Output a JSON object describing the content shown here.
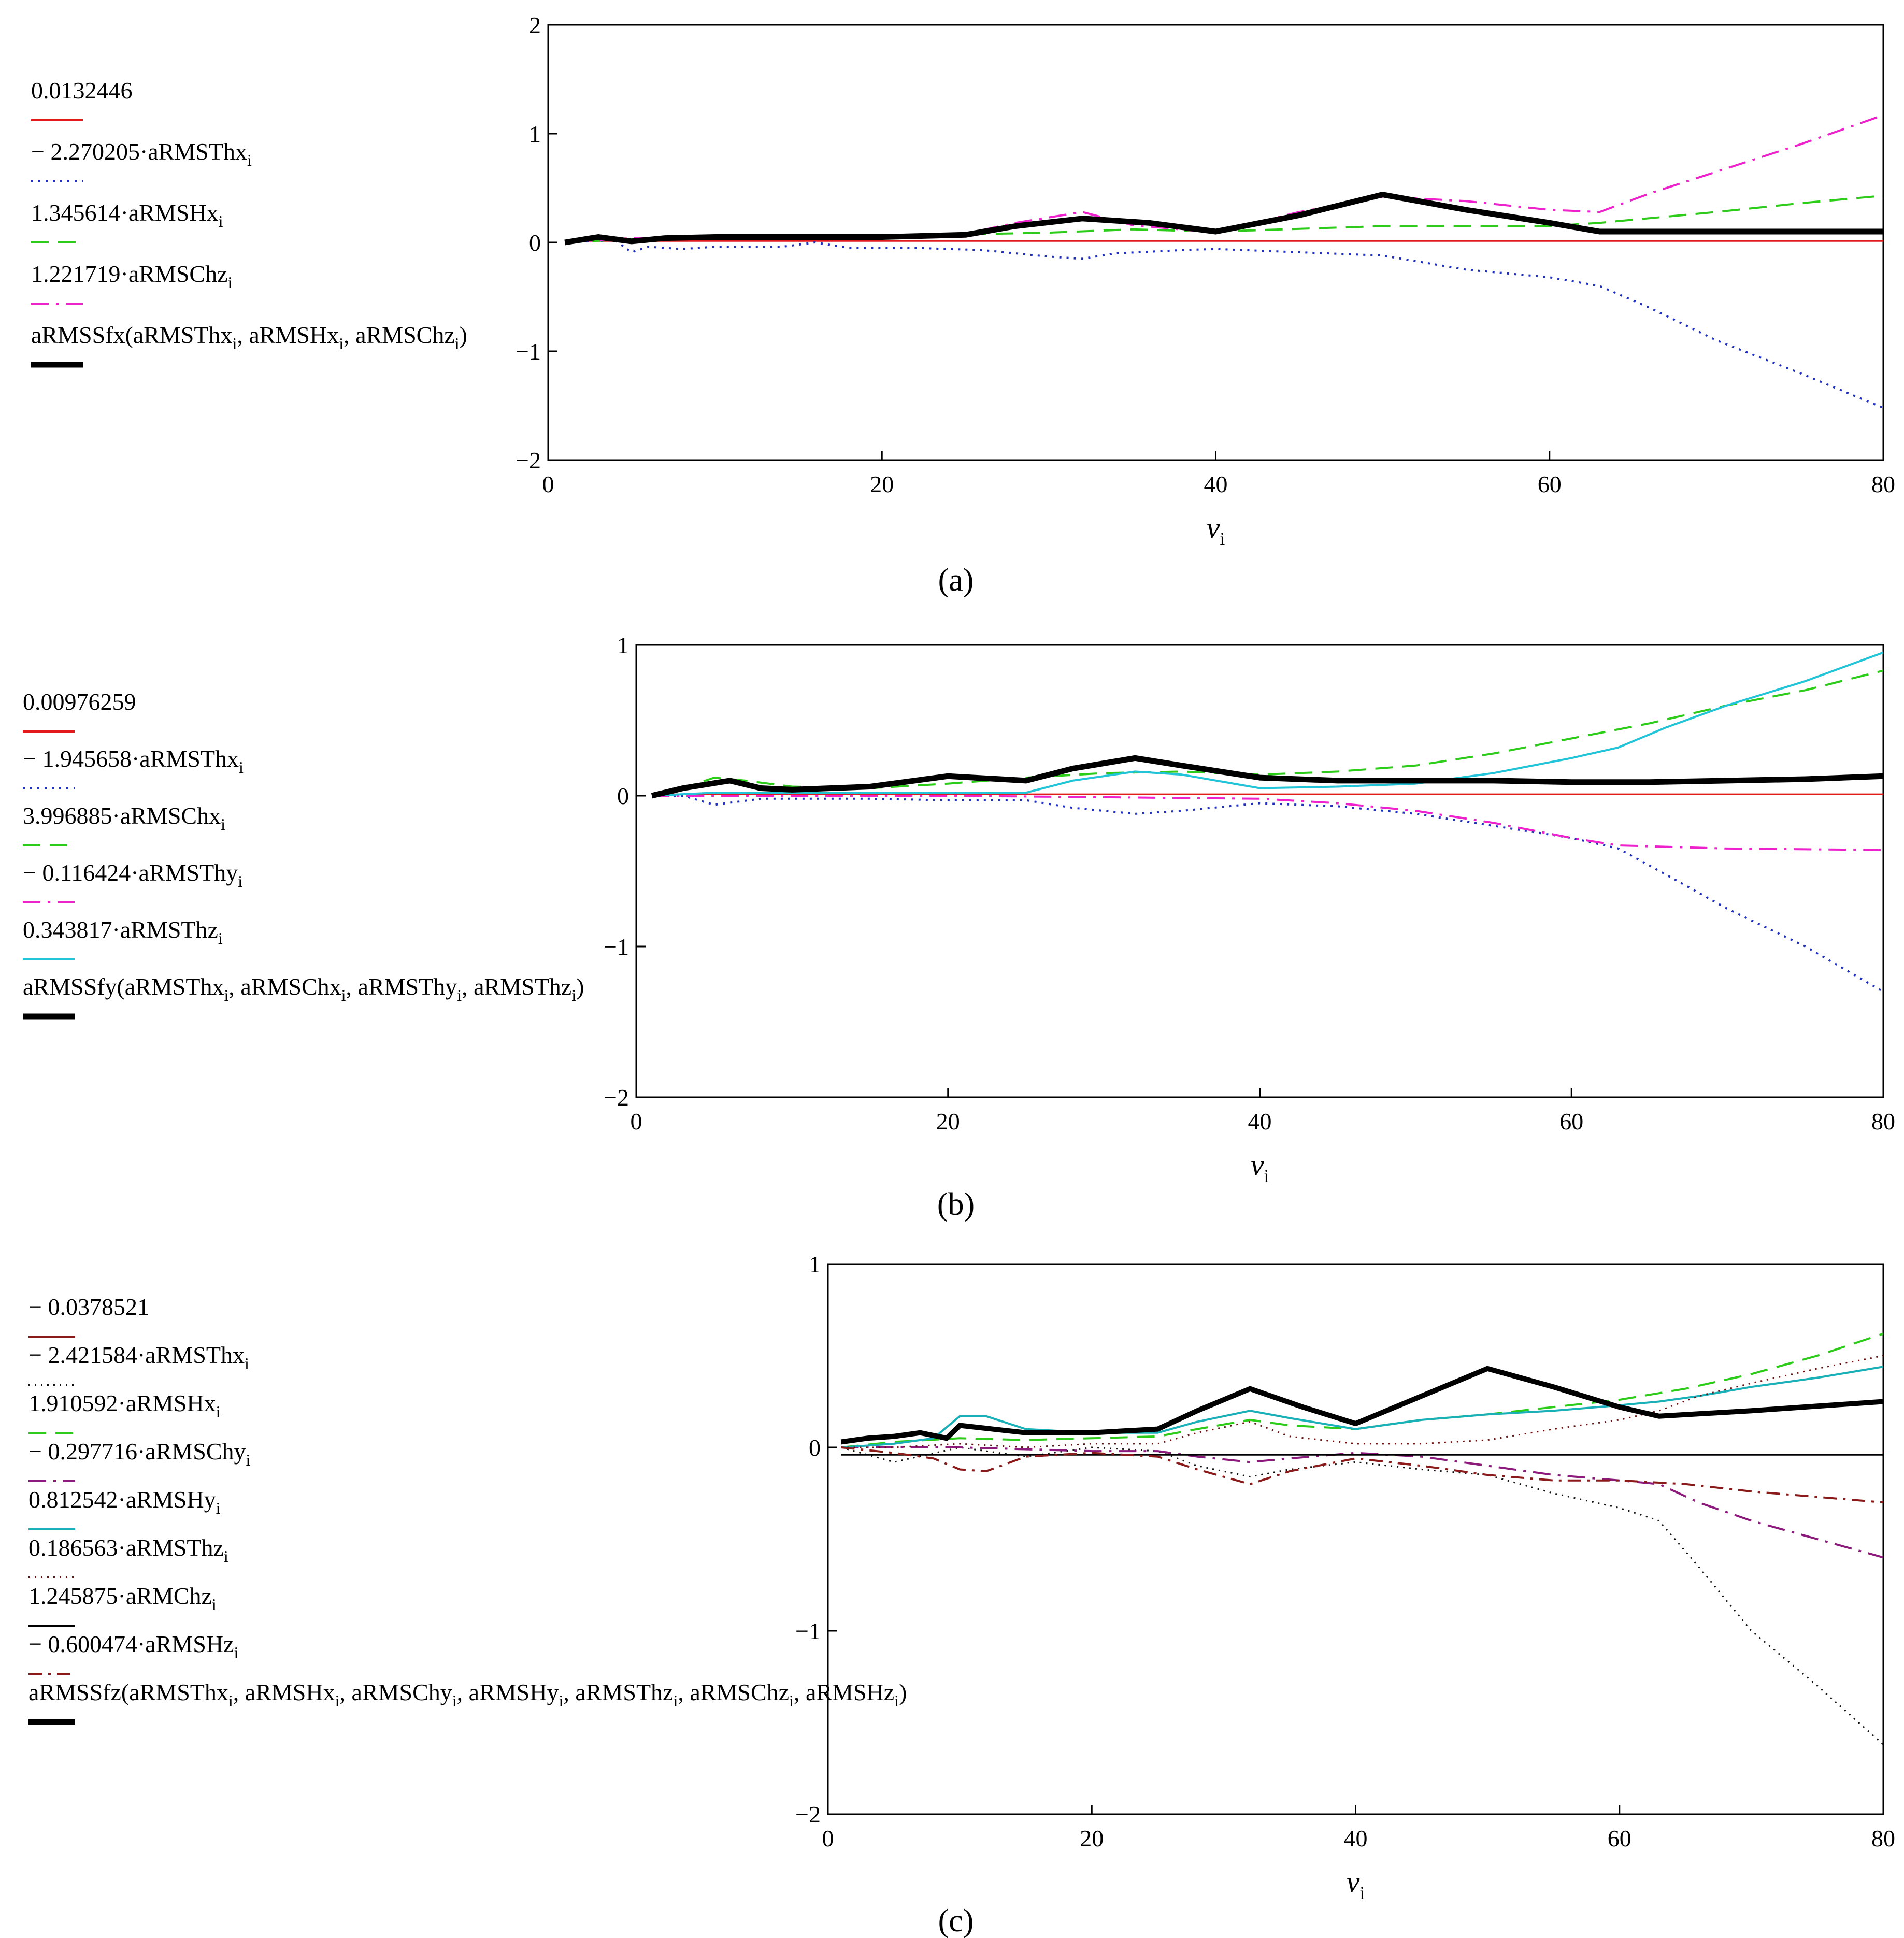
{
  "chart_data": [
    {
      "type": "line",
      "caption": "(a)",
      "xlabel": "ν",
      "xlabel_sub": "i",
      "xlim": [
        0,
        80
      ],
      "ylim": [
        -2,
        2
      ],
      "xticks": [
        "0",
        "20",
        "40",
        "60",
        "80"
      ],
      "yticks": [
        "2",
        "1",
        "0",
        "−1",
        "−2"
      ],
      "series": [
        {
          "legend": "0.0132446",
          "color": "#e31a1c",
          "dash": "",
          "width": 3,
          "x": [
            1,
            80
          ],
          "y": [
            0.013,
            0.013
          ]
        },
        {
          "legend": "− 2.270205·aRMSThx",
          "sub": "i",
          "color": "#1f2fbf",
          "dash": "4 10",
          "width": 4,
          "x": [
            1,
            4,
            5,
            6,
            8,
            10,
            14,
            16,
            18,
            22,
            26,
            30,
            32,
            34,
            38,
            40,
            45,
            50,
            55,
            60,
            63,
            66,
            70,
            75,
            80
          ],
          "y": [
            0.0,
            0.02,
            -0.09,
            -0.04,
            -0.06,
            -0.04,
            -0.04,
            0.0,
            -0.05,
            -0.05,
            -0.07,
            -0.13,
            -0.15,
            -0.1,
            -0.07,
            -0.06,
            -0.09,
            -0.12,
            -0.25,
            -0.32,
            -0.4,
            -0.6,
            -0.9,
            -1.2,
            -1.52
          ]
        },
        {
          "legend": "1.345614·aRMSHx",
          "sub": "i",
          "color": "#2ecc1a",
          "dash": "34 18",
          "width": 4,
          "x": [
            1,
            5,
            10,
            16,
            20,
            30,
            35,
            40,
            50,
            60,
            63,
            70,
            75,
            80
          ],
          "y": [
            0.0,
            0.03,
            0.04,
            0.05,
            0.06,
            0.09,
            0.12,
            0.1,
            0.15,
            0.15,
            0.18,
            0.28,
            0.36,
            0.43
          ]
        },
        {
          "legend": "1.221719·aRMSChz",
          "sub": "i",
          "color": "#ee22cc",
          "dash": "34 14 5 14",
          "width": 4,
          "x": [
            1,
            5,
            10,
            20,
            25,
            28,
            32,
            35,
            40,
            45,
            50,
            55,
            60,
            63,
            66,
            70,
            75,
            80
          ],
          "y": [
            0.0,
            0.04,
            0.05,
            0.05,
            0.08,
            0.18,
            0.28,
            0.16,
            0.09,
            0.28,
            0.42,
            0.38,
            0.3,
            0.28,
            0.45,
            0.65,
            0.9,
            1.17
          ]
        },
        {
          "legend": "aRMSSfx(aRMSThx",
          "sub": "i",
          "legend_tail": [
            ", aRMSHx",
            ", aRMSChz"
          ],
          "legend_close": ")",
          "color": "#000000",
          "dash": "",
          "width": 11,
          "x": [
            1,
            3,
            5,
            7,
            10,
            20,
            25,
            28,
            32,
            36,
            40,
            45,
            50,
            55,
            60,
            63,
            70,
            80
          ],
          "y": [
            0.0,
            0.05,
            0.01,
            0.04,
            0.05,
            0.05,
            0.07,
            0.15,
            0.22,
            0.18,
            0.1,
            0.25,
            0.44,
            0.3,
            0.18,
            0.1,
            0.1,
            0.1
          ]
        }
      ]
    },
    {
      "type": "line",
      "caption": "(b)",
      "xlabel": "ν",
      "xlabel_sub": "i",
      "xlim": [
        0,
        80
      ],
      "ylim": [
        -2,
        1
      ],
      "xticks": [
        "0",
        "20",
        "40",
        "60",
        "80"
      ],
      "yticks": [
        "1",
        "0",
        "−1",
        "−2"
      ],
      "series": [
        {
          "legend": "0.00976259",
          "color": "#e31a1c",
          "dash": "",
          "width": 3,
          "x": [
            1,
            80
          ],
          "y": [
            0.01,
            0.01
          ]
        },
        {
          "legend": "− 1.945658·aRMSThx",
          "sub": "i",
          "color": "#1f2fbf",
          "dash": "4 10",
          "width": 4,
          "x": [
            1,
            3,
            5,
            8,
            10,
            15,
            20,
            25,
            28,
            32,
            35,
            40,
            45,
            50,
            55,
            60,
            63,
            66,
            70,
            75,
            80
          ],
          "y": [
            0.0,
            0.0,
            -0.06,
            -0.02,
            -0.02,
            -0.02,
            -0.03,
            -0.03,
            -0.08,
            -0.12,
            -0.1,
            -0.05,
            -0.07,
            -0.12,
            -0.2,
            -0.28,
            -0.35,
            -0.52,
            -0.75,
            -1.0,
            -1.3
          ]
        },
        {
          "legend": "3.996885·aRMSChx",
          "sub": "i",
          "color": "#2ecc1a",
          "dash": "34 18",
          "width": 4,
          "x": [
            1,
            3,
            5,
            7,
            10,
            15,
            20,
            25,
            30,
            35,
            40,
            45,
            50,
            55,
            60,
            65,
            70,
            75,
            80
          ],
          "y": [
            0.0,
            0.05,
            0.12,
            0.1,
            0.06,
            0.05,
            0.08,
            0.12,
            0.15,
            0.16,
            0.14,
            0.16,
            0.2,
            0.28,
            0.38,
            0.48,
            0.6,
            0.7,
            0.83
          ]
        },
        {
          "legend": "− 0.116424·aRMSThy",
          "sub": "i",
          "color": "#ee22cc",
          "dash": "34 14 5 14",
          "width": 4,
          "x": [
            1,
            10,
            20,
            30,
            40,
            45,
            50,
            55,
            60,
            63,
            70,
            80
          ],
          "y": [
            0.0,
            0.0,
            0.0,
            -0.01,
            -0.02,
            -0.05,
            -0.1,
            -0.18,
            -0.28,
            -0.33,
            -0.35,
            -0.36
          ]
        },
        {
          "legend": "0.343817·aRMSThz",
          "sub": "i",
          "color": "#22c4d8",
          "dash": "",
          "width": 4,
          "x": [
            1,
            5,
            10,
            15,
            20,
            25,
            28,
            32,
            35,
            40,
            45,
            50,
            55,
            60,
            63,
            66,
            70,
            75,
            80
          ],
          "y": [
            0.0,
            0.02,
            0.02,
            0.02,
            0.02,
            0.02,
            0.1,
            0.16,
            0.14,
            0.05,
            0.06,
            0.08,
            0.15,
            0.25,
            0.32,
            0.45,
            0.6,
            0.76,
            0.95
          ]
        },
        {
          "legend": "aRMSSfy(aRMSThx",
          "sub": "i",
          "legend_tail": [
            ", aRMSChx",
            ", aRMSThy",
            ", aRMSThz"
          ],
          "legend_close": ")",
          "color": "#000000",
          "dash": "",
          "width": 11,
          "x": [
            1,
            3,
            6,
            8,
            10,
            15,
            20,
            25,
            28,
            32,
            35,
            40,
            45,
            50,
            55,
            60,
            65,
            70,
            75,
            80
          ],
          "y": [
            0.0,
            0.05,
            0.1,
            0.05,
            0.04,
            0.06,
            0.13,
            0.1,
            0.18,
            0.25,
            0.2,
            0.12,
            0.1,
            0.1,
            0.1,
            0.09,
            0.09,
            0.1,
            0.11,
            0.13
          ]
        }
      ]
    },
    {
      "type": "line",
      "caption": "(c)",
      "xlabel": "ν",
      "xlabel_sub": "i",
      "xlim": [
        0,
        80
      ],
      "ylim": [
        -2,
        1
      ],
      "xticks": [
        "0",
        "20",
        "40",
        "60",
        "80"
      ],
      "yticks": [
        "1",
        "0",
        "−1",
        "−2"
      ],
      "series": [
        {
          "legend": "− 0.0378521",
          "color": "#8b1a1a",
          "dash": "",
          "width": 3,
          "x": [
            1,
            80
          ],
          "y": [
            -0.038,
            -0.038
          ]
        },
        {
          "legend": "− 2.421584·aRMSThx",
          "sub": "i",
          "color": "#111111",
          "dash": "3 9",
          "width": 3,
          "x": [
            1,
            5,
            10,
            15,
            20,
            25,
            28,
            32,
            35,
            40,
            45,
            50,
            55,
            60,
            63,
            66,
            70,
            75,
            80
          ],
          "y": [
            0.0,
            -0.08,
            0.0,
            -0.05,
            0.0,
            -0.02,
            -0.1,
            -0.16,
            -0.12,
            -0.08,
            -0.12,
            -0.15,
            -0.25,
            -0.33,
            -0.4,
            -0.65,
            -1.0,
            -1.3,
            -1.62
          ]
        },
        {
          "legend": "1.910592·aRMSHx",
          "sub": "i",
          "color": "#2ecc1a",
          "dash": "34 18",
          "width": 4,
          "x": [
            1,
            5,
            10,
            15,
            20,
            25,
            28,
            32,
            35,
            40,
            45,
            50,
            55,
            60,
            65,
            70,
            75,
            80
          ],
          "y": [
            0.0,
            0.03,
            0.05,
            0.04,
            0.05,
            0.06,
            0.1,
            0.15,
            0.12,
            0.1,
            0.15,
            0.18,
            0.22,
            0.26,
            0.32,
            0.4,
            0.5,
            0.62
          ]
        },
        {
          "legend": "− 0.297716·aRMSChy",
          "sub": "i",
          "color": "#8b1a7a",
          "dash": "34 14 5 14",
          "width": 4,
          "x": [
            1,
            10,
            20,
            25,
            28,
            32,
            35,
            40,
            45,
            50,
            55,
            60,
            63,
            66,
            70,
            75,
            80
          ],
          "y": [
            0.0,
            0.0,
            -0.02,
            -0.02,
            -0.05,
            -0.08,
            -0.06,
            -0.03,
            -0.05,
            -0.1,
            -0.15,
            -0.18,
            -0.2,
            -0.3,
            -0.4,
            -0.5,
            -0.6
          ]
        },
        {
          "legend": "0.812542·aRMSHy",
          "sub": "i",
          "color": "#1ab0b8",
          "dash": "",
          "width": 4,
          "x": [
            1,
            5,
            8,
            10,
            12,
            15,
            20,
            25,
            28,
            32,
            35,
            40,
            45,
            50,
            55,
            60,
            63,
            66,
            70,
            75,
            80
          ],
          "y": [
            0.0,
            0.02,
            0.05,
            0.17,
            0.17,
            0.1,
            0.08,
            0.08,
            0.14,
            0.2,
            0.16,
            0.1,
            0.15,
            0.18,
            0.2,
            0.23,
            0.25,
            0.28,
            0.33,
            0.38,
            0.44
          ]
        },
        {
          "legend": "0.186563·aRMSThz",
          "sub": "i",
          "color": "#6b1010",
          "dash": "3 9",
          "width": 3,
          "x": [
            1,
            5,
            10,
            15,
            20,
            25,
            28,
            32,
            35,
            40,
            45,
            50,
            55,
            60,
            63,
            66,
            70,
            75,
            80
          ],
          "y": [
            0.0,
            0.0,
            0.02,
            0.0,
            0.02,
            0.02,
            0.08,
            0.14,
            0.06,
            0.02,
            0.02,
            0.04,
            0.1,
            0.15,
            0.2,
            0.28,
            0.35,
            0.43,
            0.5
          ]
        },
        {
          "legend": "1.245875·aRMChz",
          "sub": "i",
          "color": "#000000",
          "dash": "",
          "width": 3,
          "x": [
            1,
            80
          ],
          "y": [
            -0.04,
            -0.04
          ]
        },
        {
          "legend": "− 0.600474·aRMSHz",
          "sub": "i",
          "color": "#8b1a1a",
          "dash": "26 12 5 12",
          "width": 4,
          "x": [
            1,
            5,
            8,
            10,
            12,
            15,
            20,
            25,
            28,
            32,
            35,
            40,
            45,
            50,
            55,
            60,
            65,
            70,
            75,
            80
          ],
          "y": [
            0.0,
            -0.03,
            -0.06,
            -0.12,
            -0.13,
            -0.05,
            -0.03,
            -0.05,
            -0.12,
            -0.2,
            -0.13,
            -0.06,
            -0.1,
            -0.15,
            -0.18,
            -0.18,
            -0.2,
            -0.24,
            -0.27,
            -0.3
          ]
        },
        {
          "legend": "aRMSSfz(aRMSThx",
          "sub": "i",
          "legend_tail": [
            ", aRMSHx",
            ", aRMSChy",
            ", aRMSHy",
            ", aRMSThz",
            ", aRMSChz",
            ", aRMSHz"
          ],
          "legend_close": ")",
          "color": "#000000",
          "dash": "",
          "width": 10,
          "x": [
            1,
            3,
            5,
            7,
            9,
            10,
            15,
            20,
            25,
            28,
            32,
            36,
            40,
            45,
            50,
            55,
            60,
            63,
            70,
            80
          ],
          "y": [
            0.03,
            0.05,
            0.06,
            0.08,
            0.05,
            0.12,
            0.08,
            0.08,
            0.1,
            0.2,
            0.32,
            0.22,
            0.13,
            0.28,
            0.43,
            0.33,
            0.22,
            0.17,
            0.2,
            0.25
          ]
        }
      ]
    }
  ]
}
